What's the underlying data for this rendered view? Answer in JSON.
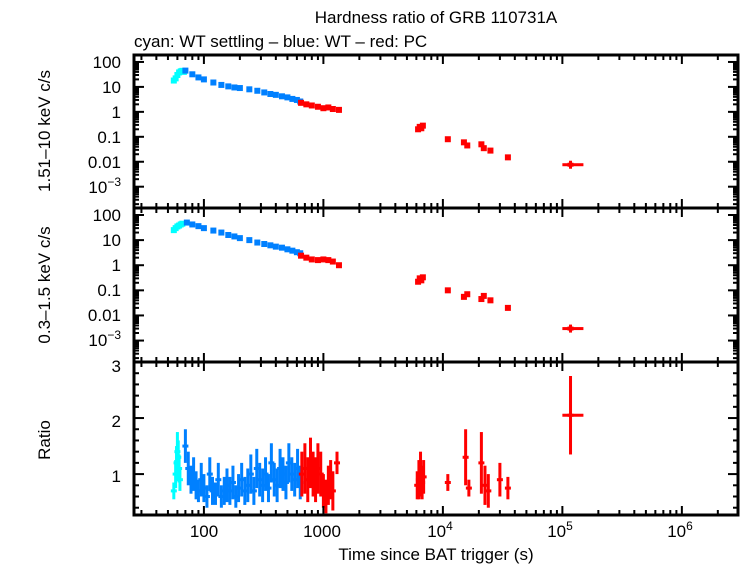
{
  "chart_data": [
    {
      "type": "scatter",
      "panel": "hard-band-rate",
      "title": "Hardness ratio of GRB 110731A",
      "subtitle": "cyan: WT settling – blue: WT – red: PC",
      "xlabel": "Time since BAT trigger (s)",
      "ylabel": "1.51–10 keV c/s",
      "xscale": "log",
      "yscale": "log",
      "xlim": [
        26,
        2950000
      ],
      "ylim": [
        0.00014,
        190
      ],
      "yticks": [
        100,
        10,
        1,
        0.1,
        0.01,
        0.001
      ],
      "ytick_labels": [
        "100",
        "10",
        "1",
        "0.1",
        "0.01",
        "10⁻³"
      ],
      "series": [
        {
          "name": "WT settling",
          "color": "#00ffff",
          "x": [
            56,
            58,
            60,
            62,
            64,
            66,
            68
          ],
          "y": [
            18,
            22,
            30,
            38,
            42,
            44,
            40
          ]
        },
        {
          "name": "WT",
          "color": "#0080ff",
          "x": [
            70,
            80,
            90,
            100,
            120,
            140,
            160,
            180,
            200,
            240,
            280,
            320,
            360,
            400,
            450,
            500,
            550,
            600,
            640
          ],
          "y": [
            45,
            32,
            24,
            20,
            15,
            12,
            10.5,
            9.5,
            9,
            8,
            7,
            6,
            5.2,
            4.8,
            4.2,
            3.8,
            3.3,
            3.0,
            2.6
          ]
        },
        {
          "name": "PC",
          "color": "#ff0000",
          "x": [
            650,
            720,
            800,
            900,
            1000,
            1100,
            1200,
            1350,
            6200,
            6400,
            6600,
            6800,
            11000,
            15000,
            16000,
            21000,
            22000,
            25000,
            35000,
            117000
          ],
          "y": [
            2.3,
            2.0,
            1.8,
            1.6,
            1.4,
            1.5,
            1.3,
            1.2,
            0.2,
            0.25,
            0.22,
            0.28,
            0.08,
            0.06,
            0.045,
            0.05,
            0.035,
            0.028,
            0.015,
            0.0076
          ],
          "xerr_last": [
            100000,
            150000
          ]
        }
      ]
    },
    {
      "type": "scatter",
      "panel": "soft-band-rate",
      "ylabel": "0.3–1.5 keV c/s",
      "xscale": "log",
      "yscale": "log",
      "xlim": [
        26,
        2950000
      ],
      "ylim": [
        0.00014,
        190
      ],
      "yticks": [
        100,
        10,
        1,
        0.1,
        0.01,
        0.001
      ],
      "ytick_labels": [
        "100",
        "10",
        "1",
        "0.1",
        "0.01",
        "10⁻³"
      ],
      "series": [
        {
          "name": "WT settling",
          "color": "#00ffff",
          "x": [
            56,
            58,
            60,
            62,
            64,
            66
          ],
          "y": [
            25,
            30,
            35,
            38,
            42,
            45
          ]
        },
        {
          "name": "WT",
          "color": "#0080ff",
          "x": [
            72,
            80,
            90,
            100,
            120,
            140,
            160,
            180,
            200,
            240,
            280,
            320,
            360,
            400,
            450,
            500,
            550,
            600,
            640
          ],
          "y": [
            50,
            42,
            36,
            30,
            24,
            20,
            16,
            14,
            12,
            10,
            8,
            7,
            6.2,
            5.5,
            5,
            4.3,
            3.8,
            3.3,
            3.0
          ]
        },
        {
          "name": "PC",
          "color": "#ff0000",
          "x": [
            650,
            720,
            800,
            900,
            1000,
            1100,
            1200,
            1350,
            6200,
            6400,
            6600,
            6800,
            11000,
            15000,
            16000,
            21000,
            22000,
            25000,
            35000,
            117000
          ],
          "y": [
            2.4,
            2.0,
            1.7,
            1.6,
            1.7,
            1.6,
            1.4,
            1.0,
            0.22,
            0.3,
            0.25,
            0.33,
            0.1,
            0.055,
            0.07,
            0.045,
            0.06,
            0.04,
            0.02,
            0.003
          ],
          "xerr_last": [
            100000,
            150000
          ]
        }
      ]
    },
    {
      "type": "scatter",
      "panel": "hardness-ratio",
      "ylabel": "Ratio",
      "xlabel": "Time since BAT trigger (s)",
      "xscale": "log",
      "yscale": "linear",
      "xlim": [
        26,
        2950000
      ],
      "ylim": [
        0.27,
        3
      ],
      "yticks": [
        1,
        2,
        3
      ],
      "ytick_labels": [
        "1",
        "2",
        "3"
      ],
      "xticks": [
        100,
        1000,
        10000,
        100000,
        1000000
      ],
      "xtick_labels": [
        "100",
        "1000",
        "10⁴",
        "10⁵",
        "10⁶"
      ],
      "series": [
        {
          "name": "WT settling",
          "color": "#00ffff",
          "x": [
            56,
            58,
            59,
            60,
            61,
            62,
            63
          ],
          "y": [
            0.7,
            1.0,
            1.2,
            1.4,
            1.3,
            1.1,
            0.9
          ],
          "err": [
            0.15,
            0.25,
            0.3,
            0.35,
            0.3,
            0.25,
            0.2
          ]
        },
        {
          "name": "WT",
          "color": "#0080ff",
          "x": [
            70,
            74,
            78,
            82,
            86,
            90,
            95,
            100,
            106,
            112,
            118,
            125,
            132,
            140,
            148,
            156,
            165,
            175,
            185,
            195,
            207,
            220,
            233,
            247,
            262,
            277,
            293,
            310,
            328,
            347,
            367,
            388,
            410,
            434,
            459,
            486,
            514,
            544,
            575,
            608,
            640
          ],
          "y": [
            1.5,
            1.1,
            0.9,
            1.0,
            0.8,
            0.7,
            0.9,
            0.75,
            0.6,
            1.0,
            0.7,
            0.65,
            0.9,
            0.6,
            0.7,
            0.8,
            0.7,
            0.85,
            0.6,
            0.75,
            0.9,
            0.7,
            0.8,
            1.0,
            0.7,
            1.1,
            0.9,
            0.8,
            1.0,
            0.75,
            1.2,
            0.9,
            0.8,
            1.1,
            1.0,
            0.85,
            1.2,
            1.0,
            0.9,
            1.1,
            0.85
          ],
          "err": [
            0.3,
            0.3,
            0.25,
            0.3,
            0.25,
            0.2,
            0.3,
            0.25,
            0.2,
            0.3,
            0.25,
            0.2,
            0.3,
            0.2,
            0.25,
            0.3,
            0.25,
            0.3,
            0.2,
            0.25,
            0.3,
            0.25,
            0.3,
            0.35,
            0.25,
            0.35,
            0.3,
            0.3,
            0.3,
            0.25,
            0.35,
            0.3,
            0.3,
            0.35,
            0.3,
            0.3,
            0.35,
            0.3,
            0.3,
            0.35,
            0.3
          ]
        },
        {
          "name": "PC",
          "color": "#ff0000",
          "x": [
            660,
            700,
            740,
            780,
            820,
            860,
            900,
            950,
            1000,
            1050,
            1100,
            1150,
            1200,
            1300,
            6100,
            6300,
            6500,
            6700,
            6900,
            11000,
            15500,
            16500,
            21000,
            22500,
            24000,
            30000,
            35000,
            117000
          ],
          "y": [
            1.0,
            1.1,
            0.9,
            1.2,
            1.0,
            0.9,
            1.1,
            1.0,
            0.7,
            0.6,
            0.8,
            0.9,
            0.7,
            1.2,
            0.8,
            0.9,
            1.0,
            0.85,
            0.95,
            0.85,
            1.3,
            0.75,
            1.2,
            0.8,
            0.7,
            0.9,
            0.75,
            2.05
          ],
          "err": [
            0.4,
            0.45,
            0.4,
            0.45,
            0.4,
            0.4,
            0.45,
            0.4,
            0.3,
            0.3,
            0.35,
            0.35,
            0.35,
            0.2,
            0.25,
            0.35,
            0.4,
            0.3,
            0.3,
            0.15,
            0.5,
            0.15,
            0.55,
            0.35,
            0.3,
            0.3,
            0.2,
            0.7
          ],
          "xerr_last": [
            100000,
            150000
          ]
        }
      ]
    }
  ],
  "labels": {
    "title": "Hardness ratio of GRB 110731A",
    "subtitle": "cyan: WT settling – blue: WT – red: PC",
    "xlabel": "Time since BAT trigger (s)",
    "ylabel_top": "1.51–10 keV c/s",
    "ylabel_mid": "0.3–1.5 keV c/s",
    "ylabel_bottom": "Ratio",
    "xtick_100": "100",
    "xtick_1000": "1000",
    "xtick_1e4_base": "10",
    "xtick_1e4_exp": "4",
    "xtick_1e5_base": "10",
    "xtick_1e5_exp": "5",
    "xtick_1e6_base": "10",
    "xtick_1e6_exp": "6",
    "ytick_100": "100",
    "ytick_10": "10",
    "ytick_1": "1",
    "ytick_01": "0.1",
    "ytick_001": "0.01",
    "ytick_1e3_base": "10",
    "ytick_1e3_exp": "−3",
    "rtick_1": "1",
    "rtick_2": "2",
    "rtick_3": "3"
  }
}
